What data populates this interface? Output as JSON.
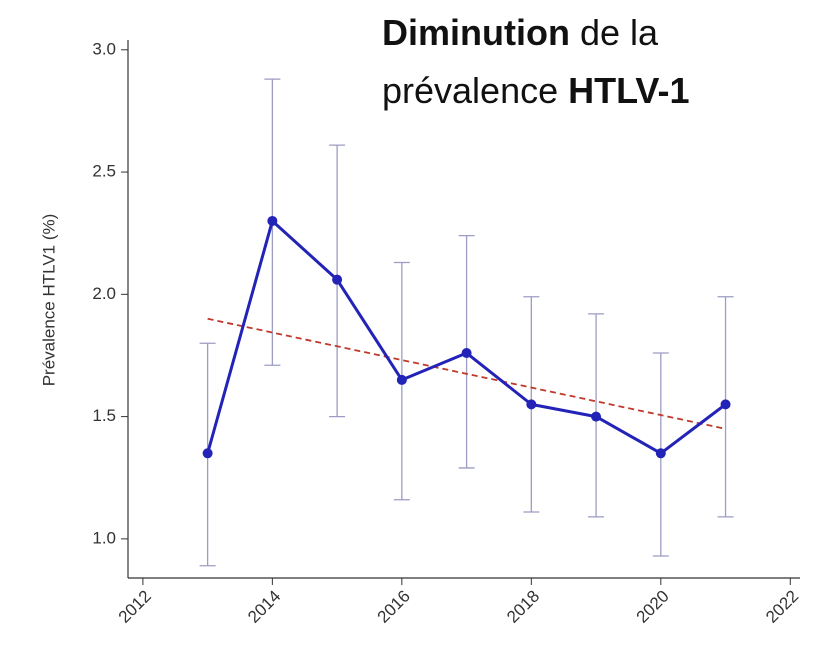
{
  "chart_data": {
    "type": "line",
    "title_lines": [
      [
        {
          "text": "Diminution",
          "bold": true
        },
        {
          "text": " de la",
          "bold": false
        }
      ],
      [
        {
          "text": "prévalence ",
          "bold": false
        },
        {
          "text": "HTLV-1",
          "bold": true
        }
      ]
    ],
    "y_label": "Prévalence HTLV1 (%)",
    "x": [
      2013,
      2014,
      2015,
      2016,
      2017,
      2018,
      2019,
      2020,
      2021
    ],
    "series": [
      {
        "color": "#2323b8",
        "values": [
          1.35,
          2.3,
          2.06,
          1.65,
          1.76,
          1.55,
          1.5,
          1.35,
          1.55
        ],
        "ci_low": [
          0.89,
          1.71,
          1.5,
          1.16,
          1.29,
          1.11,
          1.09,
          0.93,
          1.09
        ],
        "ci_high": [
          1.8,
          2.88,
          2.61,
          2.13,
          2.24,
          1.99,
          1.92,
          1.76,
          1.99
        ],
        "ci_color": "#9c9cc4"
      }
    ],
    "trend": {
      "x": [
        2013,
        2021
      ],
      "values": [
        1.9,
        1.45
      ],
      "color": "#c0392b",
      "dashed": true
    },
    "xlim": [
      2011.77,
      2022.15
    ],
    "ylim": [
      0.84,
      3.04
    ],
    "xticks": [
      2012,
      2014,
      2016,
      2018,
      2020,
      2022
    ],
    "yticks": [
      {
        "value": 1.0,
        "label": "1.0"
      },
      {
        "value": 1.5,
        "label": "1.5"
      },
      {
        "value": 2.0,
        "label": "2.0"
      },
      {
        "value": 2.5,
        "label": "2.5"
      },
      {
        "value": 3.0,
        "label": "3.0"
      }
    ],
    "grid": false
  }
}
